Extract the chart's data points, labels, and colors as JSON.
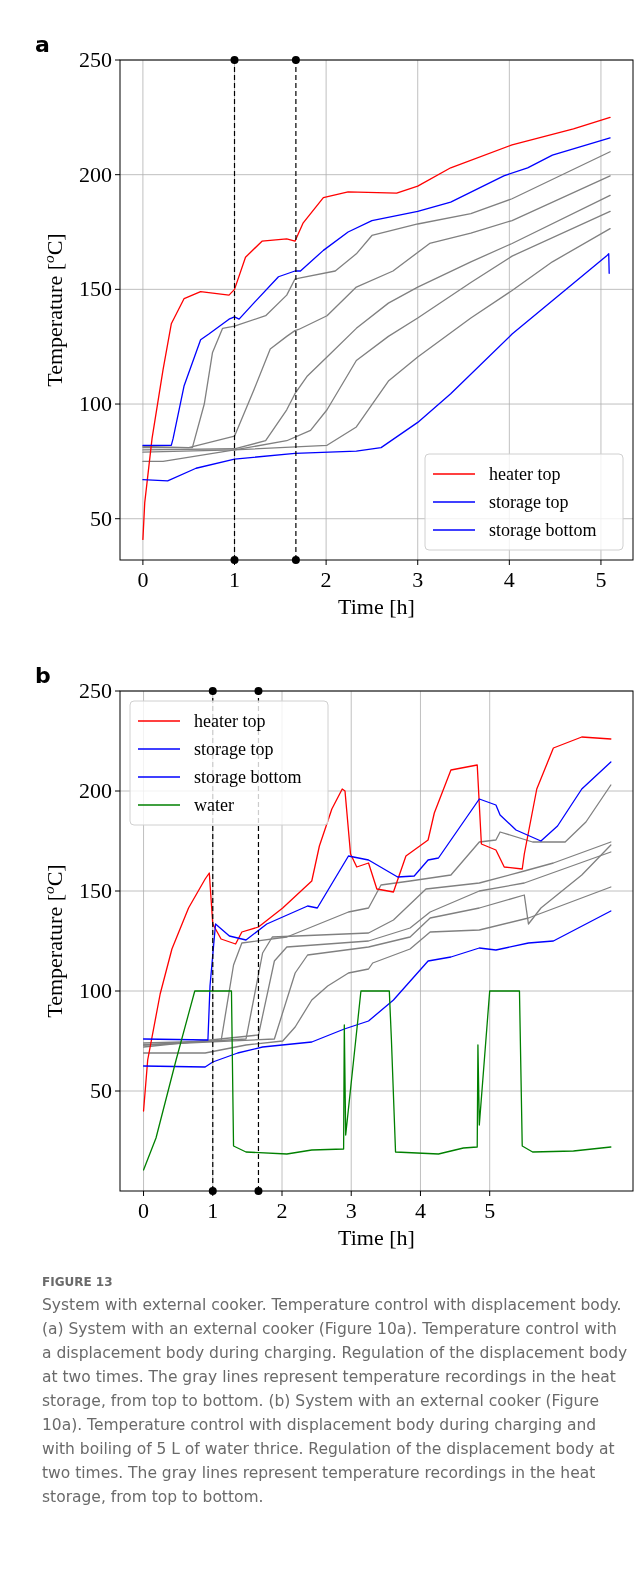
{
  "chart_data": [
    {
      "type": "line",
      "title": "a",
      "xlabel": "Time [h]",
      "ylabel": "Temperature [$^{o}$C]",
      "xlim": [
        -0.25,
        5.35
      ],
      "ylim": [
        32,
        250
      ],
      "xticks": [
        0,
        1,
        2,
        3,
        4,
        5
      ],
      "yticks": [
        50,
        100,
        150,
        200,
        250
      ],
      "grid": true,
      "legend": "bottom right",
      "marker": "none",
      "line_style": "solid",
      "ref_lines": [
        {
          "axis": "x",
          "value": 1,
          "color": "#000000",
          "line_style": "dashed"
        },
        {
          "axis": "x",
          "value": 1.67,
          "color": "#000000",
          "line_style": "dashed"
        }
      ],
      "series": [
        {
          "color": "#808080",
          "x": [
            0,
            0.54,
            0.67,
            0.76,
            0.87,
            1.0,
            1.34,
            1.57,
            1.66,
            1.72,
            2.1,
            2.33,
            2.5,
            3.0,
            3.58,
            4.03,
            5.1
          ],
          "values": [
            81,
            81,
            100,
            122.5,
            133,
            134,
            138.5,
            147.5,
            154.5,
            155,
            158,
            165.5,
            173.5,
            178.5,
            183,
            189.5,
            210
          ]
        },
        {
          "color": "#808080",
          "x": [
            0,
            0.5,
            1.0,
            1.21,
            1.39,
            1.57,
            1.66,
            1.7,
            2.01,
            2.33,
            2.73,
            3.13,
            3.58,
            4.03,
            5.1
          ],
          "values": [
            81.5,
            81,
            86,
            106,
            124,
            129.5,
            132,
            132.5,
            138.5,
            151,
            158,
            170,
            174.5,
            180,
            199.5
          ]
        },
        {
          "color": "#808080",
          "x": [
            0,
            1.0,
            1.34,
            1.57,
            1.66,
            1.79,
            2.01,
            2.33,
            2.68,
            3.0,
            3.58,
            4.03,
            5.1
          ],
          "values": [
            80,
            80.5,
            84,
            97.5,
            104.5,
            112,
            120.5,
            133,
            144,
            151,
            162,
            170,
            191
          ]
        },
        {
          "color": "#808080",
          "x": [
            0,
            1.0,
            1.57,
            1.83,
            2.01,
            2.33,
            2.68,
            3.0,
            3.58,
            4.03,
            5.1
          ],
          "values": [
            79,
            80,
            84,
            88.5,
            97.5,
            119,
            129.5,
            137.5,
            153,
            164.5,
            184
          ]
        },
        {
          "color": "#808080",
          "x": [
            0,
            0.22,
            1.0,
            2.01,
            2.33,
            2.68,
            3.0,
            3.58,
            4.03,
            4.47,
            5.1
          ],
          "values": [
            75,
            75,
            80,
            82,
            90,
            110,
            120.5,
            137.5,
            149.5,
            162,
            176.5
          ]
        },
        {
          "name": "heater top",
          "color": "#ff0000",
          "x": [
            0,
            0.02,
            0.1,
            0.22,
            0.31,
            0.45,
            0.63,
            0.94,
            1.0,
            1.12,
            1.3,
            1.57,
            1.66,
            1.75,
            1.97,
            2.24,
            2.77,
            3.0,
            3.36,
            4.03,
            4.7,
            5.1
          ],
          "values": [
            41,
            57,
            85,
            115,
            135,
            146,
            149,
            147.5,
            150,
            164,
            171,
            172,
            171,
            179,
            190,
            192.5,
            192,
            195,
            203,
            213,
            220,
            225
          ]
        },
        {
          "name": "storage top",
          "color": "#0000ff",
          "x": [
            0,
            0.31,
            0.33,
            0.45,
            0.63,
            0.72,
            0.94,
            1.0,
            1.05,
            1.21,
            1.48,
            1.66,
            1.72,
            1.97,
            2.24,
            2.5,
            3.0,
            3.36,
            3.94,
            4.2,
            4.47,
            5.1
          ],
          "values": [
            82,
            82,
            85,
            108,
            128,
            130.5,
            137,
            138,
            137,
            144,
            155.5,
            158,
            158,
            167,
            175,
            180,
            184,
            188,
            199.5,
            203,
            208.5,
            216
          ]
        },
        {
          "name": "storage bottom",
          "color": "#0000ff",
          "x": [
            0,
            0.27,
            0.58,
            1.0,
            1.66,
            2.33,
            2.6,
            3.0,
            3.36,
            4.03,
            5.06,
            5.085,
            5.09
          ],
          "values": [
            67,
            66.5,
            72,
            76,
            78.5,
            79.5,
            81,
            92,
            104.5,
            130.5,
            164.5,
            165.5,
            157
          ]
        }
      ]
    },
    {
      "type": "line",
      "title": "b",
      "xlabel": "Time [h]",
      "ylabel": "Temperature [$^{o}$C]",
      "xlim": [
        -0.34,
        7.07
      ],
      "ylim": [
        0,
        250
      ],
      "xticks": [
        0,
        1,
        2,
        3,
        4,
        5
      ],
      "yticks": [
        50,
        100,
        150,
        200,
        250
      ],
      "grid": true,
      "legend": "top left",
      "marker": "none",
      "line_style": "solid",
      "ref_lines": [
        {
          "axis": "x",
          "value": 1,
          "color": "#000000",
          "line_style": "dashed"
        },
        {
          "axis": "x",
          "value": 1.66,
          "color": "#000000",
          "line_style": "dashed"
        }
      ],
      "annotations": [
        "FIGURE 13",
        "System with external cooker. Temperature control with displacement body. (a) System with an external cooker (Figure 10a). Temperature control with a displacement body during charging. Regulation of the displacement body at two times. The gray lines represent temperature recordings in the heat storage, from top to bottom. (b) System with an external cooker (Figure 10a). Temperature control with displacement body during charging and with boiling of 5 L of water thrice. Regulation of the displacement body at two times. The gray lines represent temperature recordings in the heat storage, from top to bottom."
      ],
      "series": [
        {
          "color": "#808080",
          "x": [
            0,
            1.12,
            1.3,
            1.42,
            2.07,
            2.96,
            3.25,
            3.43,
            3.85,
            4.44,
            4.85,
            5.09,
            5.15,
            5.62,
            6.09,
            6.39,
            6.75
          ],
          "values": [
            74,
            75,
            113,
            124,
            127,
            139.5,
            141.5,
            153,
            155,
            158,
            174.5,
            175.5,
            179.5,
            174.5,
            174.5,
            184.5,
            203
          ]
        },
        {
          "color": "#808080",
          "x": [
            0,
            1.48,
            1.72,
            1.86,
            3.25,
            3.61,
            4.08,
            4.85,
            5.5,
            5.92,
            6.75
          ],
          "values": [
            73,
            76,
            119,
            127,
            129,
            135.5,
            151,
            154,
            160,
            164,
            174.5
          ]
        },
        {
          "color": "#808080",
          "x": [
            0,
            1.66,
            1.89,
            2.07,
            3.25,
            3.85,
            4.14,
            4.85,
            5.5,
            6.75
          ],
          "values": [
            72,
            78,
            115,
            122,
            125,
            131.5,
            139.5,
            150,
            154,
            169.5
          ]
        },
        {
          "color": "#808080",
          "x": [
            0,
            1.89,
            2.19,
            2.37,
            3.25,
            3.85,
            4.14,
            4.85,
            5.5,
            5.56,
            5.74,
            6.33,
            6.75
          ],
          "values": [
            73,
            76,
            109,
            118,
            122,
            127,
            136.5,
            141.5,
            148,
            133.5,
            141.5,
            158,
            173
          ]
        },
        {
          "color": "#808080",
          "x": [
            0,
            0.89,
            1.48,
            2.01,
            2.19,
            2.43,
            2.66,
            2.96,
            3.25,
            3.31,
            3.85,
            4.14,
            4.85,
            5.56,
            6.75
          ],
          "values": [
            69,
            69,
            73,
            75,
            82,
            95.5,
            102.5,
            109,
            111,
            114,
            121,
            129.5,
            130.5,
            136.5,
            152
          ]
        },
        {
          "name": "heater top",
          "color": "#ff0000",
          "x": [
            0,
            0.06,
            0.24,
            0.41,
            0.65,
            0.89,
            0.95,
            1.0,
            1.12,
            1.33,
            1.42,
            1.66,
            2.01,
            2.43,
            2.54,
            2.72,
            2.87,
            2.91,
            2.99,
            3.08,
            3.25,
            3.37,
            3.61,
            3.79,
            4.11,
            4.2,
            4.44,
            4.82,
            4.88,
            5.09,
            5.21,
            5.47,
            5.5,
            5.68,
            5.92,
            6.33,
            6.75
          ],
          "values": [
            40,
            65.5,
            98.5,
            121,
            141.5,
            156,
            159,
            133.5,
            126,
            123.5,
            129.5,
            132,
            141.5,
            155,
            172.5,
            191,
            201,
            200,
            168.5,
            162,
            164,
            151,
            149.5,
            167.5,
            175.5,
            189,
            210.5,
            213,
            173.5,
            170.5,
            162,
            161,
            168.5,
            201,
            221.5,
            227,
            226
          ]
        },
        {
          "name": "storage top",
          "color": "#0000ff",
          "x": [
            0,
            0.93,
            0.96,
            1.04,
            1.24,
            1.48,
            1.78,
            2.37,
            2.51,
            2.96,
            3.25,
            3.67,
            3.91,
            4.11,
            4.26,
            4.85,
            5.09,
            5.15,
            5.38,
            5.74,
            5.98,
            6.33,
            6.75
          ],
          "values": [
            76,
            75.5,
            102.5,
            133.5,
            127.5,
            125.5,
            133.5,
            142.5,
            141.5,
            167.5,
            165.5,
            157,
            157.5,
            165.5,
            166.5,
            196,
            193,
            188,
            180.5,
            175,
            182.5,
            201,
            214.5
          ]
        },
        {
          "name": "storage bottom",
          "color": "#0000ff",
          "x": [
            0,
            0.89,
            1.0,
            1.36,
            1.72,
            2.43,
            2.9,
            3.25,
            3.61,
            4.11,
            4.44,
            4.85,
            5.09,
            5.56,
            5.92,
            6.75
          ],
          "values": [
            62.5,
            62,
            64.5,
            69,
            72,
            74.5,
            81,
            85,
            95.5,
            115,
            117,
            121.5,
            120.5,
            124,
            125,
            140
          ]
        },
        {
          "name": "water",
          "color": "#008000",
          "x": [
            0,
            0.18,
            0.47,
            0.74,
            1.27,
            1.3,
            1.48,
            2.07,
            2.43,
            2.89,
            2.9,
            2.92,
            3.14,
            3.55,
            3.58,
            3.64,
            4.26,
            4.62,
            4.82,
            4.83,
            4.85,
            5.0,
            5.43,
            5.47,
            5.62,
            6.21,
            6.75
          ],
          "values": [
            10.5,
            26.5,
            65.5,
            100,
            100,
            22.5,
            19.5,
            18.5,
            20.5,
            21,
            83,
            28,
            100,
            100,
            76,
            19.5,
            18.5,
            21.5,
            22,
            73,
            33,
            100,
            100,
            22.5,
            19.5,
            20,
            22
          ]
        }
      ]
    }
  ]
}
